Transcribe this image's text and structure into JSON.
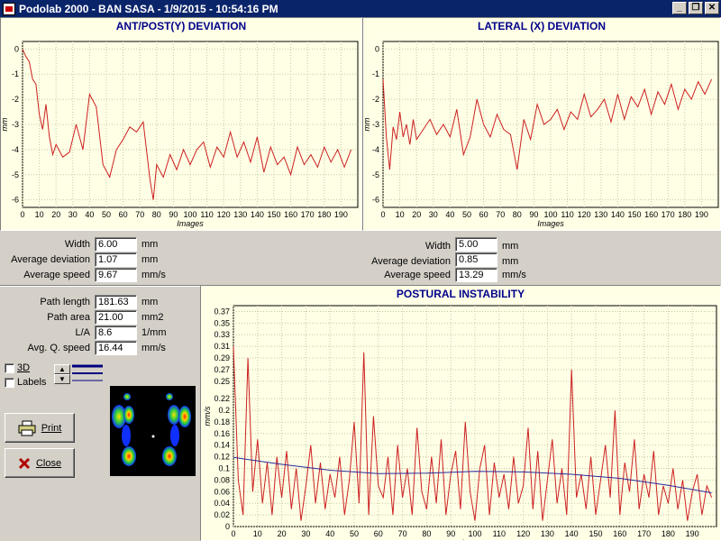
{
  "window": {
    "title": "Podolab 2000 - BAN SASA - 1/9/2015 - 10:54:16 PM",
    "buttons": [
      "_",
      "❐",
      "✕"
    ]
  },
  "ap_chart": {
    "title": "ANT/POST(Y) DEVIATION",
    "ylabel": "mm",
    "xlabel": "Images"
  },
  "lat_chart": {
    "title": "LATERAL (X) DEVIATION",
    "ylabel": "mm",
    "xlabel": "Images"
  },
  "post_chart": {
    "title": "POSTURAL INSTABILITY",
    "ylabel": "mm/s",
    "xlabel": "Images"
  },
  "ap_stats": {
    "width_label": "Width",
    "width_value": "6.00",
    "width_unit": "mm",
    "dev_label": "Average deviation",
    "dev_value": "1.07",
    "dev_unit": "mm",
    "speed_label": "Average speed",
    "speed_value": "9.67",
    "speed_unit": "mm/s"
  },
  "lat_stats": {
    "width_label": "Width",
    "width_value": "5.00",
    "width_unit": "mm",
    "dev_label": "Average deviation",
    "dev_value": "0.85",
    "dev_unit": "mm",
    "speed_label": "Average speed",
    "speed_value": "13.29",
    "speed_unit": "mm/s"
  },
  "path_stats": {
    "length_label": "Path length",
    "length_value": "181.63",
    "length_unit": "mm",
    "area_label": "Path area",
    "area_value": "21.00",
    "area_unit": "mm2",
    "la_label": "L/A",
    "la_value": "8.6",
    "la_unit": "1/mm",
    "speed_label": "Avg. Q. speed",
    "speed_value": "16.44",
    "speed_unit": "mm/s"
  },
  "options": {
    "label_3d": "3D",
    "label_labels": "Labels"
  },
  "buttons": {
    "print_label": "Print",
    "close_label": "Close"
  },
  "icons": {
    "print": "printer-icon",
    "close": "close-x-icon"
  },
  "colors": {
    "trace": "#cc2020",
    "trend": "#2a2a9a",
    "title": "#00008b",
    "grid": "#c8c8a0",
    "plot_bg": "#ffffe6"
  },
  "chart_data": [
    {
      "type": "line",
      "title": "ANT/POST(Y) DEVIATION",
      "xlabel": "Images",
      "ylabel": "mm",
      "xlim": [
        0,
        200
      ],
      "ylim": [
        -6.3,
        0.3
      ],
      "xticks": [
        0,
        10,
        20,
        30,
        40,
        50,
        60,
        70,
        80,
        90,
        100,
        110,
        120,
        130,
        140,
        150,
        160,
        170,
        180,
        190
      ],
      "yticks": [
        0,
        -1,
        -2,
        -3,
        -4,
        -5,
        -6
      ],
      "series": [
        {
          "x": [
            0,
            2,
            4,
            6,
            8,
            10,
            12,
            14,
            16,
            18,
            20,
            24,
            28,
            32,
            36,
            40,
            44,
            48,
            52,
            56,
            60,
            64,
            68,
            72,
            76,
            78,
            80,
            84,
            88,
            92,
            96,
            100,
            104,
            108,
            112,
            116,
            120,
            124,
            128,
            132,
            136,
            140,
            144,
            148,
            152,
            156,
            160,
            164,
            168,
            172,
            176,
            180,
            184,
            188,
            192,
            196
          ],
          "y": [
            0.0,
            -0.3,
            -0.5,
            -1.2,
            -1.4,
            -2.6,
            -3.2,
            -2.2,
            -3.5,
            -4.2,
            -3.8,
            -4.3,
            -4.1,
            -3.0,
            -4.0,
            -1.8,
            -2.3,
            -4.6,
            -5.1,
            -4.0,
            -3.6,
            -3.1,
            -3.3,
            -2.9,
            -5.2,
            -6.0,
            -4.6,
            -5.1,
            -4.2,
            -4.8,
            -4.0,
            -4.6,
            -4.0,
            -3.7,
            -4.7,
            -3.9,
            -4.3,
            -3.3,
            -4.3,
            -3.7,
            -4.5,
            -3.5,
            -4.9,
            -3.9,
            -4.6,
            -4.3,
            -5.0,
            -3.9,
            -4.6,
            -4.2,
            -4.7,
            -3.9,
            -4.5,
            -4.0,
            -4.7,
            -4.0
          ]
        }
      ]
    },
    {
      "type": "line",
      "title": "LATERAL (X) DEVIATION",
      "xlabel": "Images",
      "ylabel": "mm",
      "xlim": [
        0,
        200
      ],
      "ylim": [
        -6.3,
        0.3
      ],
      "xticks": [
        0,
        10,
        20,
        30,
        40,
        50,
        60,
        70,
        80,
        90,
        100,
        110,
        120,
        130,
        140,
        150,
        160,
        170,
        180,
        190
      ],
      "yticks": [
        0,
        -1,
        -2,
        -3,
        -4,
        -5,
        -6
      ],
      "series": [
        {
          "x": [
            0,
            2,
            4,
            6,
            8,
            10,
            12,
            14,
            16,
            18,
            20,
            24,
            28,
            32,
            36,
            40,
            44,
            48,
            52,
            56,
            60,
            64,
            68,
            72,
            76,
            80,
            84,
            88,
            92,
            96,
            100,
            104,
            108,
            112,
            116,
            120,
            124,
            128,
            132,
            136,
            140,
            144,
            148,
            152,
            156,
            160,
            164,
            168,
            172,
            176,
            180,
            184,
            188,
            192,
            196
          ],
          "y": [
            -1.2,
            -3.5,
            -4.8,
            -3.1,
            -3.6,
            -2.5,
            -3.5,
            -3.0,
            -3.8,
            -2.8,
            -3.6,
            -3.2,
            -2.8,
            -3.4,
            -3.0,
            -3.5,
            -2.4,
            -4.2,
            -3.5,
            -2.0,
            -3.0,
            -3.5,
            -2.6,
            -3.2,
            -3.4,
            -4.8,
            -2.8,
            -3.6,
            -2.2,
            -3.0,
            -2.8,
            -2.4,
            -3.2,
            -2.5,
            -2.8,
            -1.8,
            -2.7,
            -2.4,
            -2.0,
            -2.9,
            -1.8,
            -2.8,
            -1.9,
            -2.3,
            -1.6,
            -2.6,
            -1.7,
            -2.2,
            -1.4,
            -2.4,
            -1.6,
            -2.0,
            -1.3,
            -1.8,
            -1.2
          ]
        }
      ]
    },
    {
      "type": "line",
      "title": "POSTURAL INSTABILITY",
      "xlabel": "Images",
      "ylabel": "mm/s",
      "xlim": [
        0,
        200
      ],
      "ylim": [
        0,
        0.38
      ],
      "xticks": [
        0,
        10,
        20,
        30,
        40,
        50,
        60,
        70,
        80,
        90,
        100,
        110,
        120,
        130,
        140,
        150,
        160,
        170,
        180,
        190
      ],
      "yticks": [
        0,
        0.02,
        0.04,
        0.06,
        0.08,
        0.1,
        0.12,
        0.14,
        0.16,
        0.18,
        0.2,
        0.22,
        0.25,
        0.27,
        0.29,
        0.31,
        0.33,
        0.35,
        0.37
      ],
      "series": [
        {
          "name": "speed",
          "x": [
            0,
            2,
            4,
            6,
            8,
            10,
            12,
            14,
            16,
            18,
            20,
            22,
            24,
            26,
            28,
            30,
            32,
            34,
            36,
            38,
            40,
            42,
            44,
            46,
            48,
            50,
            52,
            54,
            56,
            58,
            60,
            62,
            64,
            66,
            68,
            70,
            72,
            74,
            76,
            78,
            80,
            82,
            84,
            86,
            88,
            90,
            92,
            94,
            96,
            98,
            100,
            102,
            104,
            106,
            108,
            110,
            112,
            114,
            116,
            118,
            120,
            122,
            124,
            126,
            128,
            130,
            132,
            134,
            136,
            138,
            140,
            142,
            144,
            146,
            148,
            150,
            152,
            154,
            156,
            158,
            160,
            162,
            164,
            166,
            168,
            170,
            172,
            174,
            176,
            178,
            180,
            182,
            184,
            186,
            188,
            190,
            192,
            194,
            196,
            198
          ],
          "y": [
            0.31,
            0.08,
            0.02,
            0.29,
            0.06,
            0.15,
            0.04,
            0.11,
            0.02,
            0.12,
            0.05,
            0.13,
            0.03,
            0.1,
            0.01,
            0.07,
            0.14,
            0.04,
            0.11,
            0.03,
            0.09,
            0.05,
            0.12,
            0.02,
            0.08,
            0.18,
            0.04,
            0.3,
            0.02,
            0.19,
            0.07,
            0.05,
            0.12,
            0.02,
            0.14,
            0.05,
            0.1,
            0.02,
            0.17,
            0.06,
            0.03,
            0.12,
            0.04,
            0.15,
            0.02,
            0.09,
            0.13,
            0.03,
            0.18,
            0.06,
            0.01,
            0.1,
            0.14,
            0.02,
            0.11,
            0.05,
            0.09,
            0.03,
            0.12,
            0.04,
            0.07,
            0.17,
            0.03,
            0.13,
            0.01,
            0.08,
            0.15,
            0.04,
            0.1,
            0.02,
            0.27,
            0.05,
            0.09,
            0.03,
            0.12,
            0.02,
            0.08,
            0.14,
            0.05,
            0.2,
            0.02,
            0.11,
            0.06,
            0.15,
            0.03,
            0.09,
            0.05,
            0.13,
            0.02,
            0.07,
            0.04,
            0.1,
            0.03,
            0.08,
            0.01,
            0.06,
            0.09,
            0.02,
            0.07,
            0.05
          ]
        },
        {
          "name": "trend",
          "x": [
            0,
            20,
            40,
            60,
            80,
            100,
            120,
            140,
            160,
            180,
            198
          ],
          "y": [
            0.119,
            0.107,
            0.097,
            0.091,
            0.092,
            0.095,
            0.094,
            0.09,
            0.083,
            0.071,
            0.058
          ]
        }
      ]
    }
  ]
}
